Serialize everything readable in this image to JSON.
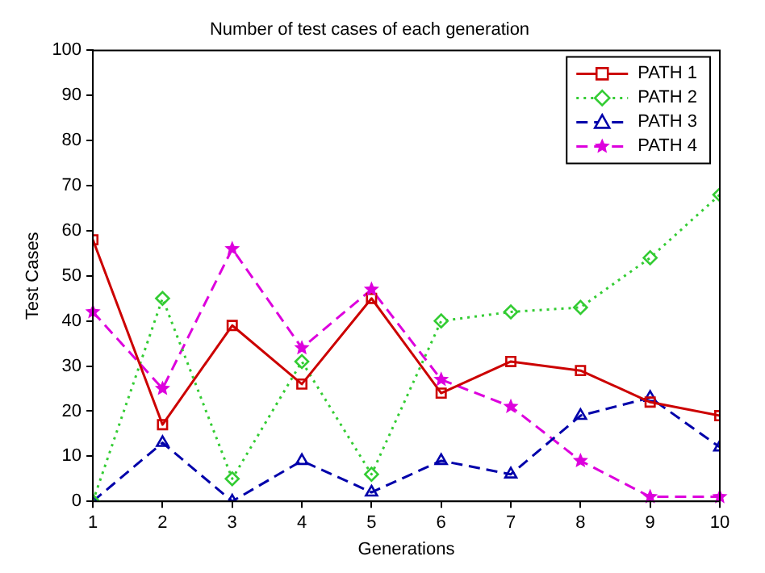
{
  "chart_data": {
    "type": "line",
    "title": "Number of test cases of each generation",
    "xlabel": "Generations",
    "ylabel": "Test Cases",
    "x": [
      1,
      2,
      3,
      4,
      5,
      6,
      7,
      8,
      9,
      10
    ],
    "series": [
      {
        "name": "PATH 1",
        "color": "#cc0000",
        "marker": "square",
        "line_style": "solid",
        "values": [
          58,
          17,
          39,
          26,
          45,
          24,
          31,
          29,
          22,
          19
        ]
      },
      {
        "name": "PATH 2",
        "color": "#33cc33",
        "marker": "diamond",
        "line_style": "dotted",
        "values": [
          0,
          45,
          5,
          31,
          6,
          40,
          42,
          43,
          54,
          68
        ]
      },
      {
        "name": "PATH 3",
        "color": "#0000aa",
        "marker": "triangle",
        "line_style": "dashed",
        "values": [
          0,
          13,
          0,
          9,
          2,
          9,
          6,
          19,
          23,
          12
        ]
      },
      {
        "name": "PATH 4",
        "color": "#dd00dd",
        "marker": "star",
        "line_style": "dashed",
        "values": [
          42,
          25,
          56,
          34,
          47,
          27,
          21,
          9,
          1,
          1
        ]
      }
    ],
    "xlim": [
      1,
      10
    ],
    "xticks": [
      1,
      2,
      3,
      4,
      5,
      6,
      7,
      8,
      9,
      10
    ],
    "ylim": [
      0,
      100
    ],
    "yticks": [
      0,
      10,
      20,
      30,
      40,
      50,
      60,
      70,
      80,
      90,
      100
    ],
    "grid": false,
    "legend": "top right"
  }
}
